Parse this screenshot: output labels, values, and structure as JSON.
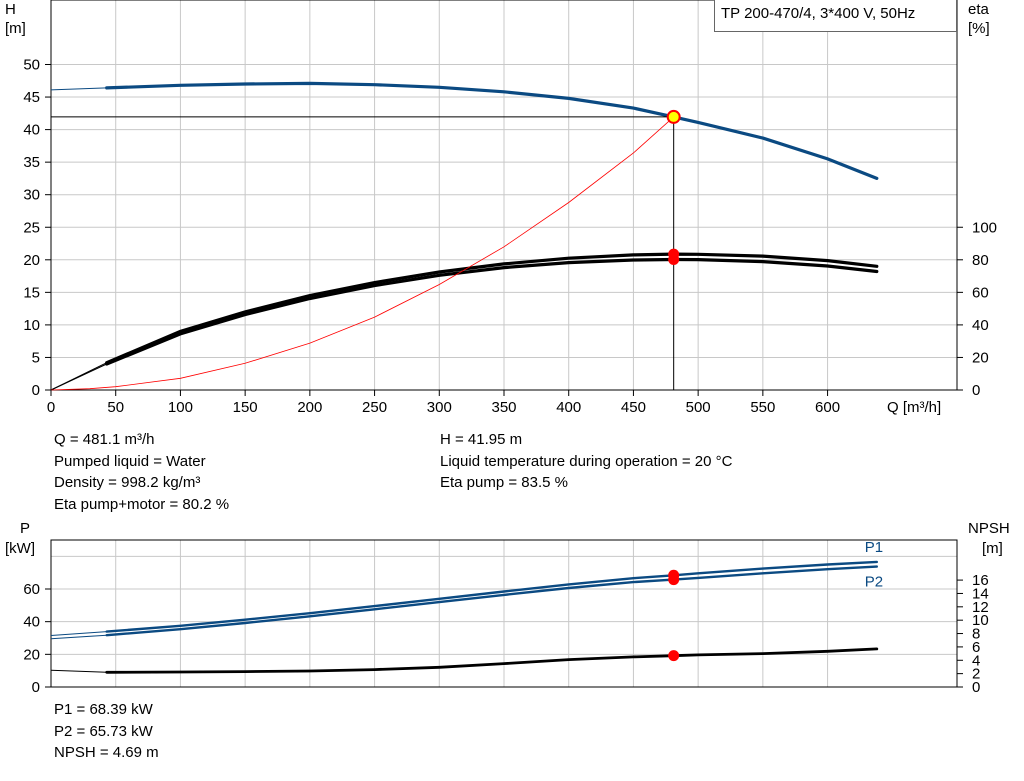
{
  "pump_label": "TP 200-470/4, 3*400 V, 50Hz",
  "colors": {
    "head_curve": "#0b4a82",
    "eta_curve": "#000000",
    "system_curve": "#ff0000",
    "power_curve": "#0b4a82",
    "npsh_curve": "#000000",
    "marker": "#ff0000",
    "grid": "#c8c8c8"
  },
  "top_info_left": [
    "Q = 481.1 m³/h",
    "Pumped liquid = Water",
    "Density = 998.2 kg/m³",
    "Eta pump+motor = 80.2 %"
  ],
  "top_info_right": [
    "H = 41.95 m",
    "Liquid temperature during operation = 20 °C",
    "Eta pump = 83.5 %"
  ],
  "bottom_info": [
    "P1 = 68.39 kW",
    "P2 = 65.73 kW",
    "NPSH = 4.69 m"
  ],
  "chart_data": [
    {
      "type": "line",
      "xlabel": "Q [m³/h]",
      "xlim": [
        0,
        700
      ],
      "xticks": [
        0,
        50,
        100,
        150,
        200,
        250,
        300,
        350,
        400,
        450,
        500,
        550,
        600
      ],
      "ylabel_left": "H",
      "yunit_left": "[m]",
      "ylim_left": [
        0,
        50
      ],
      "yticks_left": [
        0,
        5,
        10,
        15,
        20,
        25,
        30,
        35,
        40,
        45,
        50
      ],
      "ylabel_right": "eta",
      "yunit_right": "[%]",
      "ylim_right": [
        0,
        100
      ],
      "yticks_right": [
        0,
        20,
        40,
        60,
        80,
        100
      ],
      "series": [
        {
          "axis": "left",
          "role": "head",
          "points": [
            [
              0,
              46.1
            ],
            [
              43,
              46.4
            ],
            [
              100,
              46.8
            ],
            [
              150,
              47.0
            ],
            [
              200,
              47.1
            ],
            [
              250,
              46.9
            ],
            [
              300,
              46.5
            ],
            [
              350,
              45.8
            ],
            [
              400,
              44.8
            ],
            [
              450,
              43.3
            ],
            [
              481.1,
              41.95
            ],
            [
              500,
              41.1
            ],
            [
              550,
              38.7
            ],
            [
              600,
              35.5
            ],
            [
              638,
              32.5
            ]
          ]
        },
        {
          "axis": "right",
          "role": "eta_pump",
          "points": [
            [
              0,
              0
            ],
            [
              43,
              16.8
            ],
            [
              100,
              36
            ],
            [
              150,
              48
            ],
            [
              200,
              58
            ],
            [
              250,
              66
            ],
            [
              300,
              72.5
            ],
            [
              350,
              77.5
            ],
            [
              400,
              81
            ],
            [
              450,
              83
            ],
            [
              481.1,
              83.5
            ],
            [
              500,
              83.4
            ],
            [
              550,
              82.3
            ],
            [
              600,
              79.5
            ],
            [
              638,
              76
            ]
          ]
        },
        {
          "axis": "right",
          "role": "eta_pump_motor",
          "points": [
            [
              0,
              0
            ],
            [
              43,
              16.0
            ],
            [
              100,
              34.5
            ],
            [
              150,
              46.3
            ],
            [
              200,
              56.2
            ],
            [
              250,
              64.2
            ],
            [
              300,
              70.5
            ],
            [
              350,
              75.2
            ],
            [
              400,
              78.3
            ],
            [
              450,
              79.9
            ],
            [
              481.1,
              80.2
            ],
            [
              500,
              80.1
            ],
            [
              550,
              78.9
            ],
            [
              600,
              76.2
            ],
            [
              638,
              72.8
            ]
          ]
        },
        {
          "axis": "left",
          "role": "system",
          "points": [
            [
              0,
              0
            ],
            [
              30,
              0.2
            ],
            [
              50,
              0.5
            ],
            [
              100,
              1.8
            ],
            [
              150,
              4.1
            ],
            [
              200,
              7.2
            ],
            [
              250,
              11.2
            ],
            [
              300,
              16.2
            ],
            [
              350,
              22
            ],
            [
              400,
              28.8
            ],
            [
              450,
              36.4
            ],
            [
              481.1,
              41.95
            ]
          ]
        }
      ],
      "operating_point": {
        "q": 481.1,
        "h": 41.95,
        "eta_pump": 83.5,
        "eta_pump_motor": 80.2
      }
    },
    {
      "type": "line",
      "xlim": [
        0,
        700
      ],
      "ylabel_left": "P",
      "yunit_left": "[kW]",
      "ylim_left": [
        0,
        90
      ],
      "yticks_left": [
        0,
        20,
        40,
        60
      ],
      "ylabel_right": "NPSH",
      "yunit_right": "[m]",
      "ylim_right": [
        0,
        22
      ],
      "yticks_right": [
        0,
        2,
        4,
        6,
        8,
        10,
        12,
        14,
        16
      ],
      "series": [
        {
          "axis": "left",
          "name": "P1",
          "points": [
            [
              0,
              31.5
            ],
            [
              43,
              33.9
            ],
            [
              100,
              37.5
            ],
            [
              150,
              41.2
            ],
            [
              200,
              45.2
            ],
            [
              250,
              49.5
            ],
            [
              300,
              54.0
            ],
            [
              350,
              58.5
            ],
            [
              400,
              62.8
            ],
            [
              450,
              66.6
            ],
            [
              481.1,
              68.39
            ],
            [
              500,
              69.6
            ],
            [
              550,
              72.5
            ],
            [
              600,
              75.0
            ],
            [
              638,
              76.6
            ]
          ]
        },
        {
          "axis": "left",
          "name": "P2",
          "points": [
            [
              0,
              29.5
            ],
            [
              43,
              31.7
            ],
            [
              100,
              35.4
            ],
            [
              150,
              39.2
            ],
            [
              200,
              43.3
            ],
            [
              250,
              47.6
            ],
            [
              300,
              52.0
            ],
            [
              350,
              56.4
            ],
            [
              400,
              60.6
            ],
            [
              450,
              64.2
            ],
            [
              481.1,
              65.73
            ],
            [
              500,
              66.8
            ],
            [
              550,
              69.6
            ],
            [
              600,
              72.1
            ],
            [
              638,
              73.7
            ]
          ]
        },
        {
          "axis": "right",
          "role": "npsh",
          "points": [
            [
              0,
              2.5
            ],
            [
              43,
              2.2
            ],
            [
              100,
              2.25
            ],
            [
              150,
              2.3
            ],
            [
              200,
              2.4
            ],
            [
              250,
              2.6
            ],
            [
              300,
              2.95
            ],
            [
              350,
              3.5
            ],
            [
              400,
              4.1
            ],
            [
              450,
              4.5
            ],
            [
              481.1,
              4.69
            ],
            [
              500,
              4.8
            ],
            [
              550,
              5.0
            ],
            [
              600,
              5.35
            ],
            [
              638,
              5.7
            ]
          ]
        }
      ],
      "operating_point": {
        "p1": 68.39,
        "p2": 65.73,
        "npsh": 4.69
      }
    }
  ]
}
